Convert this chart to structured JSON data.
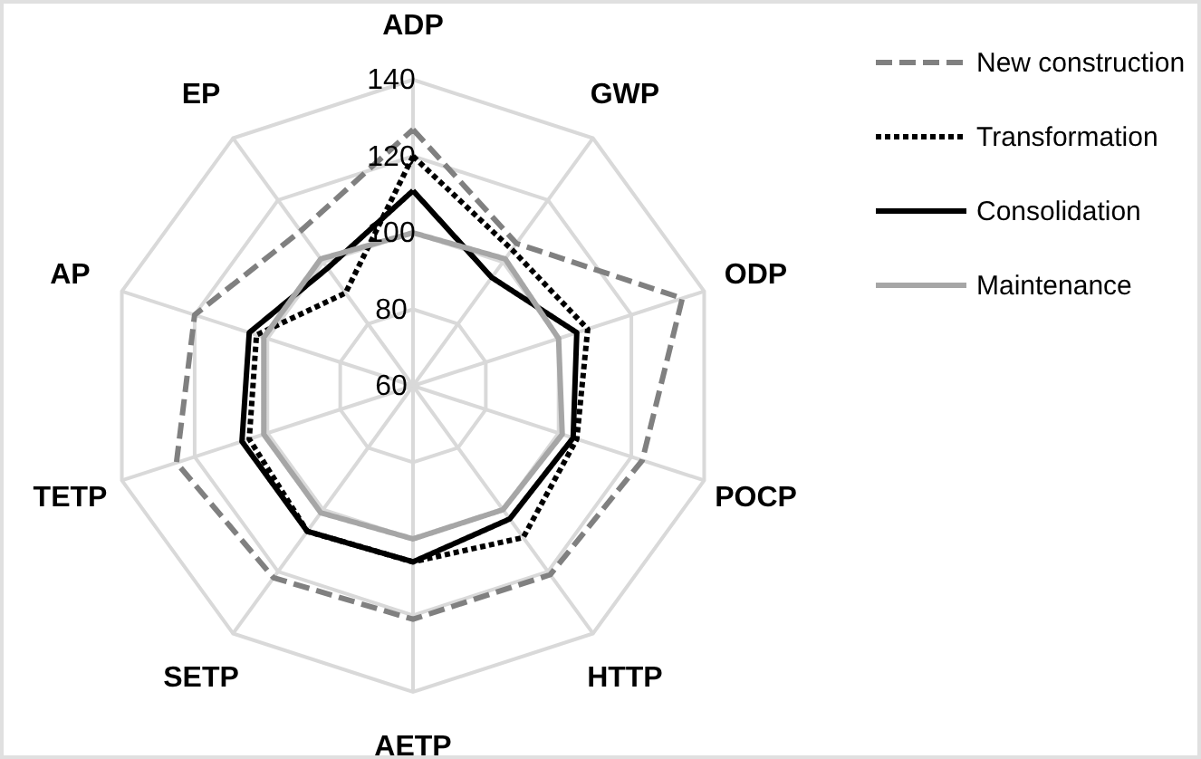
{
  "chart_data": {
    "type": "radar",
    "categories": [
      "ADP",
      "GWP",
      "ODP",
      "POCP",
      "HTTP",
      "AETP",
      "SETP",
      "TETP",
      "AP",
      "EP"
    ],
    "ylim": [
      60,
      140
    ],
    "yticks": [
      60,
      80,
      100,
      120,
      140
    ],
    "grid": true,
    "legend": "top right",
    "series": [
      {
        "name": "New construction",
        "color": "#808080",
        "line_style": "dashed",
        "values": [
          127,
          106,
          134,
          123,
          121,
          121,
          122,
          125,
          120,
          110
        ]
      },
      {
        "name": "Transformation",
        "color": "#000000",
        "line_style": "dotted",
        "values": [
          120,
          104,
          108,
          105,
          109,
          106,
          107,
          105,
          103,
          90
        ]
      },
      {
        "name": "Consolidation",
        "color": "#000000",
        "line_style": "solid",
        "values": [
          111,
          95,
          105,
          104,
          103,
          106,
          107,
          107,
          105,
          98
        ]
      },
      {
        "name": "Maintenance",
        "color": "#a6a6a6",
        "line_style": "solid",
        "values": [
          100,
          101,
          100,
          101,
          100,
          100,
          101,
          101,
          101,
          101
        ]
      }
    ]
  }
}
